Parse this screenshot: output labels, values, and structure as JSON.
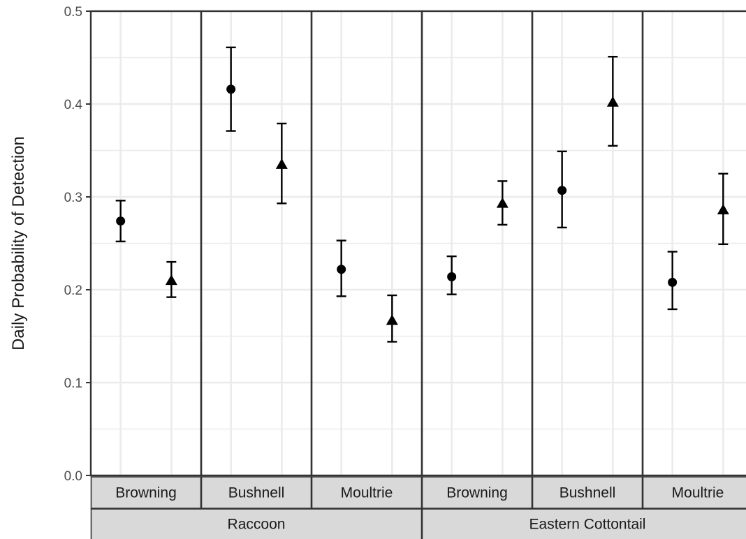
{
  "chart_data": {
    "type": "scatter",
    "ylabel": "Daily Probability of Detection",
    "xlabel": "",
    "ylim": [
      0,
      0.5
    ],
    "yticks": [
      "0.0",
      "0.1",
      "0.2",
      "0.3",
      "0.4",
      "0.5"
    ],
    "grid": true,
    "legend": "none",
    "species": [
      "Raccoon",
      "Eastern Cottontail"
    ],
    "brands": [
      "Browning",
      "Bushnell",
      "Moultrie"
    ],
    "marker_shapes": [
      "circle",
      "triangle"
    ],
    "panels": [
      {
        "species": "Raccoon",
        "brand": "Browning",
        "points": [
          {
            "shape": "circle",
            "y": 0.274,
            "lower": 0.252,
            "upper": 0.296
          },
          {
            "shape": "triangle",
            "y": 0.21,
            "lower": 0.192,
            "upper": 0.23
          }
        ]
      },
      {
        "species": "Raccoon",
        "brand": "Bushnell",
        "points": [
          {
            "shape": "circle",
            "y": 0.416,
            "lower": 0.371,
            "upper": 0.461
          },
          {
            "shape": "triangle",
            "y": 0.335,
            "lower": 0.293,
            "upper": 0.379
          }
        ]
      },
      {
        "species": "Raccoon",
        "brand": "Moultrie",
        "points": [
          {
            "shape": "circle",
            "y": 0.222,
            "lower": 0.193,
            "upper": 0.253
          },
          {
            "shape": "triangle",
            "y": 0.167,
            "lower": 0.144,
            "upper": 0.194
          }
        ]
      },
      {
        "species": "Eastern Cottontail",
        "brand": "Browning",
        "points": [
          {
            "shape": "circle",
            "y": 0.214,
            "lower": 0.195,
            "upper": 0.236
          },
          {
            "shape": "triangle",
            "y": 0.293,
            "lower": 0.27,
            "upper": 0.317
          }
        ]
      },
      {
        "species": "Eastern Cottontail",
        "brand": "Bushnell",
        "points": [
          {
            "shape": "circle",
            "y": 0.307,
            "lower": 0.267,
            "upper": 0.349
          },
          {
            "shape": "triangle",
            "y": 0.402,
            "lower": 0.355,
            "upper": 0.451
          }
        ]
      },
      {
        "species": "Eastern Cottontail",
        "brand": "Moultrie",
        "points": [
          {
            "shape": "circle",
            "y": 0.208,
            "lower": 0.179,
            "upper": 0.241
          },
          {
            "shape": "triangle",
            "y": 0.286,
            "lower": 0.249,
            "upper": 0.325
          }
        ]
      }
    ],
    "colors": {
      "point": "#000000",
      "grid": "#ebebeb",
      "panel_border": "#333333",
      "strip_fill": "#d9d9d9",
      "tick_text": "#4d4d4d"
    }
  }
}
